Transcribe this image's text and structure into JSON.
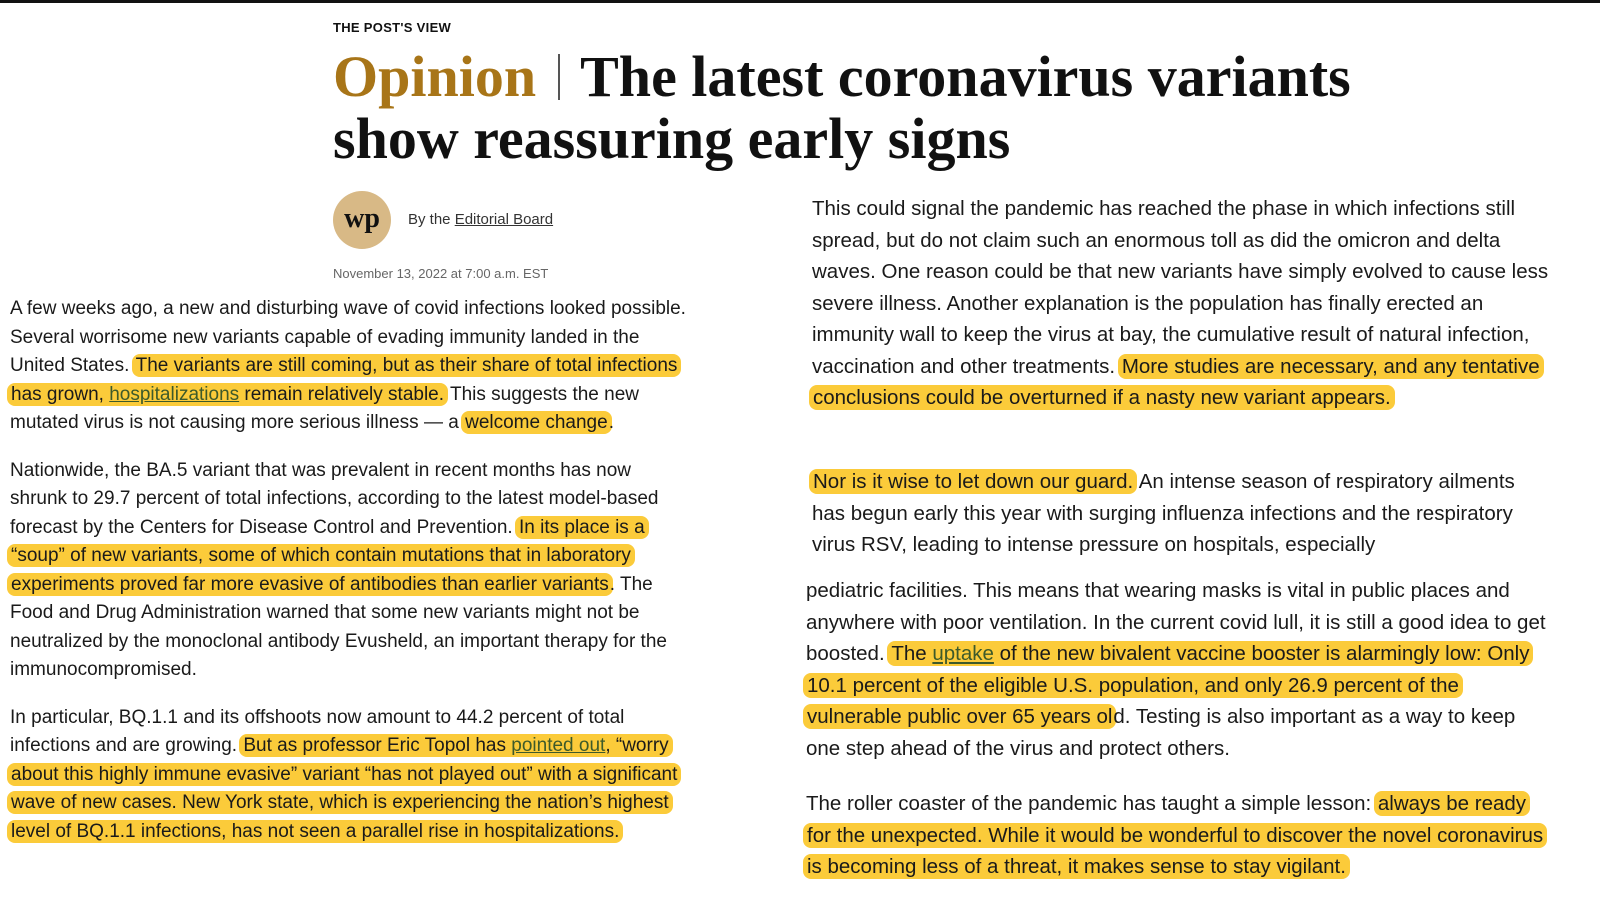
{
  "header": {
    "kicker": "THE POST'S VIEW",
    "label": "Opinion",
    "title_line1": "The latest coronavirus variants",
    "title_line2": "show reassuring early signs"
  },
  "byline": {
    "logo_text": "wp",
    "prefix": "By the",
    "author": "Editorial Board",
    "date": "November 13, 2022 at 7:00 a.m. EST"
  },
  "left_column": {
    "p1": {
      "a": "A few weeks ago, a new and disturbing wave of covid infections looked possible. Several worrisome new variants capable of evading immunity landed in the United States. ",
      "h1": "The variants are still coming, but as their share of total infections has grown, ",
      "link": "hospitalizations",
      "h2": " remain relatively stable.",
      "b": " This suggests the new mutated virus is not causing more serious illness — a ",
      "h3": "welcome change",
      "c": "."
    },
    "p2": {
      "a": "Nationwide, the BA.5 variant that was prevalent in recent months has now shrunk to 29.7 percent of total infections, according to the latest model-based forecast by the Centers for Disease Control and Prevention. ",
      "h1": "In its place is a “soup” of new variants, some of which contain mutations that in laboratory experiments proved far more evasive of antibodies than earlier variants",
      "b": ". The Food and Drug Administration warned that some new variants might not be neutralized by the monoclonal antibody Evusheld, an important therapy for the immunocompromised."
    },
    "p3": {
      "a": "In particular, BQ.1.1 and its offshoots now amount to 44.2 percent of total infections and are growing. ",
      "h1": "But as professor Eric Topol has ",
      "link": "pointed out",
      "h2": ", “worry about this highly immune evasive” variant “has not played out” with a significant wave of new cases. New York state, which is experiencing the nation’s highest level of BQ.1.1 infections, has not seen a parallel rise in hospitalizations."
    }
  },
  "right_column": {
    "p1": {
      "a": "This could signal the pandemic has reached the phase in which infections still spread, but do not claim such an enormous toll as did the omicron and delta waves. One reason could be that new variants have simply evolved to cause less severe illness. Another explanation is the population has finally erected an immunity wall to keep the virus at bay, the cumulative result of natural infection, vaccination and other treatments. ",
      "h1": "More studies are necessary, and any tentative conclusions could be overturned if a nasty new variant appears."
    },
    "p2": {
      "h1": "Nor is it wise to let down our guard.",
      "a": " An intense season of respiratory ailments has begun early this year with surging influenza infections and the respiratory virus RSV, leading to intense pressure on hospitals, especially"
    },
    "p3": {
      "a": "pediatric facilities. This means that wearing masks is vital in public places and anywhere with poor ventilation. In the current covid lull, it is still a good idea to get boosted. ",
      "h1": "The ",
      "link": "uptake",
      "h2": " of the new bivalent vaccine booster is alarmingly low: Only 10.1 percent of the eligible U.S. population, and only 26.9 percent of the vulnerable public over 65 years ol",
      "b": "d. Testing is also important as a way to keep one step ahead of the virus and protect others."
    },
    "p4": {
      "a": "The roller coaster of the pandemic has taught a simple lesson: ",
      "h1": "always be ready for the unexpected. While it would be wonderful to discover the novel coronavirus is becoming less of a threat, it makes sense to stay vigilant."
    }
  },
  "colors": {
    "highlight": "#fbcb3a",
    "opinion_label": "#a87518",
    "logo_bg": "#d8b986",
    "link": "#3d5a2a"
  }
}
